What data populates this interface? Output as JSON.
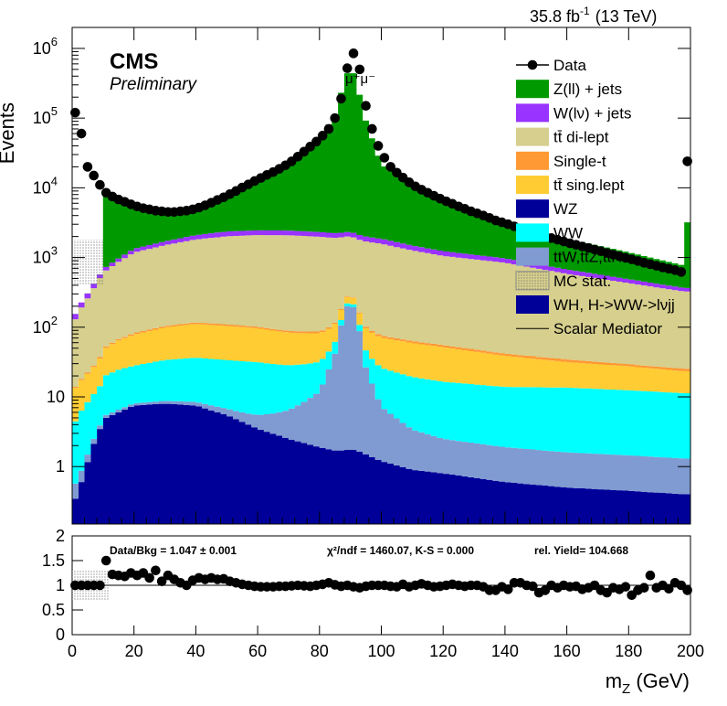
{
  "header": {
    "luminosity": "35.8 fb",
    "lumi_exp": "-1",
    "energy": "(13 TeV)",
    "cms": "CMS",
    "preliminary": "Preliminary",
    "peak_label": "μ⁺μ⁻"
  },
  "ratio_panel": {
    "data_bkg": "Data/Bkg = 1.047  ± 0.001",
    "chi2": "χ²/ndf = 1460.07,   K-S = 0.000",
    "yield": "rel. Yield= 104.668"
  },
  "legend": [
    {
      "label": "Data",
      "kind": "marker",
      "color": "#000000"
    },
    {
      "label": "Z(ll) + jets",
      "kind": "box",
      "color": "#009900"
    },
    {
      "label": "W(lν) + jets",
      "kind": "box",
      "color": "#9933ff"
    },
    {
      "label": "tt̄ di-lept",
      "kind": "box",
      "color": "#d6cf8d"
    },
    {
      "label": "Single-t",
      "kind": "box",
      "color": "#ff9933"
    },
    {
      "label": "tt̄ sing.lept",
      "kind": "box",
      "color": "#ffcc33"
    },
    {
      "label": "WZ",
      "kind": "box",
      "color": "#000099"
    },
    {
      "label": "WW",
      "kind": "box",
      "color": "#00ffff"
    },
    {
      "label": "ttW,ttZ,ttH",
      "kind": "box",
      "color": "#7f9bd1"
    },
    {
      "label": "MC stat.",
      "kind": "hatch",
      "color": "#777777"
    },
    {
      "label": "WH, H->WW->lνjj",
      "kind": "box",
      "color": "#000099"
    },
    {
      "label": "Scalar Mediator",
      "kind": "line",
      "color": "#000000"
    }
  ],
  "chart_data": {
    "type": "area",
    "title": "",
    "xlabel": "m_Z (GeV)",
    "ylabel": "Events",
    "xlim": [
      0,
      200
    ],
    "ylim": [
      0.15,
      2000000
    ],
    "ylog": true,
    "x_ticks": [
      0,
      20,
      40,
      60,
      80,
      100,
      120,
      140,
      160,
      180,
      200
    ],
    "y_ticks": [
      {
        "v": 1,
        "label": "1"
      },
      {
        "v": 10,
        "label": "10"
      },
      {
        "v": 100,
        "label": "10",
        "exp": "2"
      },
      {
        "v": 1000,
        "label": "10",
        "exp": "3"
      },
      {
        "v": 10000,
        "label": "10",
        "exp": "4"
      },
      {
        "v": 100000,
        "label": "10",
        "exp": "5"
      },
      {
        "v": 1000000,
        "label": "10",
        "exp": "6"
      }
    ],
    "stack_order": [
      "WZ",
      "ttV",
      "WW",
      "tt_sl",
      "single_t",
      "tt_dl",
      "W_jets",
      "Z_jets"
    ],
    "stack_colors": {
      "WZ": "#000099",
      "ttV": "#7f9bd1",
      "WW": "#00ffff",
      "tt_sl": "#ffcc33",
      "single_t": "#ff9933",
      "tt_dl": "#d6cf8d",
      "W_jets": "#9933ff",
      "Z_jets": "#009900"
    },
    "x_anchors": [
      0,
      2,
      4,
      6,
      8,
      10,
      11,
      15,
      20,
      30,
      40,
      50,
      60,
      70,
      80,
      85,
      88,
      90,
      92,
      95,
      100,
      110,
      120,
      140,
      160,
      180,
      198,
      200
    ],
    "stack_anchors": {
      "WZ": [
        0.3,
        0.4,
        0.9,
        1.5,
        3,
        4,
        5,
        6,
        7.5,
        8,
        7.5,
        5.5,
        3.5,
        2.5,
        1.9,
        1.7,
        1.7,
        1.8,
        1.7,
        1.5,
        1.2,
        0.9,
        0.8,
        0.6,
        0.5,
        0.45,
        0.4,
        0.4
      ],
      "ttV": [
        0.2,
        0.25,
        0.3,
        0.35,
        0.4,
        0.45,
        0.5,
        0.55,
        0.6,
        0.8,
        1,
        1.3,
        2,
        4,
        10,
        40,
        170,
        230,
        160,
        25,
        6,
        2.5,
        1.7,
        1.3,
        1.1,
        1,
        0.9,
        0.9
      ],
      "WW": [
        3,
        5,
        6,
        8,
        9,
        12,
        15,
        18,
        20,
        25,
        28,
        27,
        26,
        22,
        20,
        20,
        20,
        20,
        20,
        20,
        19,
        16,
        14,
        12,
        12,
        11,
        10,
        10
      ],
      "tt_sl": [
        8,
        10,
        12,
        14,
        18,
        25,
        30,
        40,
        50,
        65,
        75,
        70,
        65,
        55,
        50,
        50,
        50,
        50,
        50,
        50,
        45,
        40,
        35,
        25,
        18,
        15,
        12,
        12
      ],
      "single_t": [
        0.5,
        0.6,
        0.8,
        1,
        1.5,
        2,
        2.5,
        3,
        4,
        5,
        6,
        6,
        5,
        5,
        5,
        5,
        5,
        5,
        5,
        5,
        5,
        4,
        4,
        3,
        3,
        2,
        2,
        2
      ],
      "tt_dl": [
        90,
        150,
        200,
        280,
        400,
        550,
        600,
        800,
        1100,
        1400,
        1700,
        1900,
        2000,
        2000,
        1900,
        1800,
        1750,
        1700,
        1650,
        1600,
        1500,
        1200,
        1000,
        800,
        550,
        400,
        300,
        300
      ],
      "W_jets": [
        20,
        30,
        40,
        50,
        60,
        70,
        80,
        100,
        150,
        200,
        280,
        350,
        350,
        350,
        330,
        320,
        320,
        320,
        310,
        300,
        280,
        220,
        180,
        130,
        90,
        60,
        40,
        40
      ],
      "Z_jets": [
        0.5,
        0.8,
        1,
        1.5,
        2,
        3,
        7000,
        5500,
        4000,
        3000,
        3500,
        5500,
        10000,
        18000,
        48000,
        110000,
        330000,
        580000,
        330000,
        90000,
        20000,
        9000,
        5000,
        2200,
        1200,
        700,
        400,
        20000
      ]
    },
    "data_points": [
      [
        1,
        120000
      ],
      [
        3,
        60000
      ],
      [
        5,
        20000
      ],
      [
        7,
        15000
      ],
      [
        9,
        11000
      ],
      [
        11,
        8500
      ],
      [
        13,
        7500
      ],
      [
        15,
        6800
      ],
      [
        17,
        6300
      ],
      [
        19,
        5800
      ],
      [
        21,
        5400
      ],
      [
        23,
        5100
      ],
      [
        25,
        4900
      ],
      [
        27,
        4700
      ],
      [
        29,
        4600
      ],
      [
        31,
        4500
      ],
      [
        33,
        4500
      ],
      [
        35,
        4600
      ],
      [
        37,
        4700
      ],
      [
        39,
        4900
      ],
      [
        41,
        5200
      ],
      [
        43,
        5600
      ],
      [
        45,
        6100
      ],
      [
        47,
        6700
      ],
      [
        49,
        7300
      ],
      [
        51,
        8100
      ],
      [
        53,
        9000
      ],
      [
        55,
        10100
      ],
      [
        57,
        11200
      ],
      [
        59,
        12500
      ],
      [
        61,
        13800
      ],
      [
        63,
        15300
      ],
      [
        65,
        16800
      ],
      [
        67,
        18700
      ],
      [
        69,
        21000
      ],
      [
        71,
        24000
      ],
      [
        73,
        28000
      ],
      [
        75,
        33000
      ],
      [
        77,
        39000
      ],
      [
        79,
        46000
      ],
      [
        81,
        56000
      ],
      [
        83,
        70000
      ],
      [
        85,
        100000
      ],
      [
        87,
        190000
      ],
      [
        89,
        520000
      ],
      [
        91,
        850000
      ],
      [
        93,
        500000
      ],
      [
        95,
        150000
      ],
      [
        97,
        70000
      ],
      [
        99,
        40000
      ],
      [
        101,
        27000
      ],
      [
        103,
        20000
      ],
      [
        105,
        16500
      ],
      [
        107,
        14000
      ],
      [
        109,
        12000
      ],
      [
        111,
        10500
      ],
      [
        113,
        9400
      ],
      [
        115,
        8500
      ],
      [
        117,
        7700
      ],
      [
        119,
        7000
      ],
      [
        121,
        6400
      ],
      [
        123,
        5900
      ],
      [
        125,
        5400
      ],
      [
        127,
        5000
      ],
      [
        129,
        4600
      ],
      [
        131,
        4300
      ],
      [
        133,
        4000
      ],
      [
        135,
        3700
      ],
      [
        137,
        3400
      ],
      [
        139,
        3200
      ],
      [
        141,
        3000
      ],
      [
        143,
        2800
      ],
      [
        145,
        2600
      ],
      [
        147,
        2450
      ],
      [
        149,
        2300
      ],
      [
        151,
        2150
      ],
      [
        153,
        2000
      ],
      [
        155,
        1900
      ],
      [
        157,
        1800
      ],
      [
        159,
        1700
      ],
      [
        161,
        1600
      ],
      [
        163,
        1520
      ],
      [
        165,
        1440
      ],
      [
        167,
        1370
      ],
      [
        169,
        1300
      ],
      [
        171,
        1230
      ],
      [
        173,
        1160
      ],
      [
        175,
        1100
      ],
      [
        177,
        1040
      ],
      [
        179,
        990
      ],
      [
        181,
        940
      ],
      [
        183,
        890
      ],
      [
        185,
        840
      ],
      [
        187,
        800
      ],
      [
        189,
        760
      ],
      [
        191,
        720
      ],
      [
        193,
        690
      ],
      [
        195,
        660
      ],
      [
        197,
        620
      ],
      [
        199,
        24000
      ]
    ],
    "ratio": {
      "ylabel": "",
      "ylim": [
        0,
        2
      ],
      "y_ticks": [
        0,
        0.5,
        1,
        1.5,
        2
      ],
      "points": [
        [
          1,
          1.0
        ],
        [
          3,
          1.0
        ],
        [
          5,
          1.0
        ],
        [
          7,
          1.0
        ],
        [
          9,
          1.0
        ],
        [
          11,
          1.5
        ],
        [
          13,
          1.22
        ],
        [
          15,
          1.2
        ],
        [
          17,
          1.18
        ],
        [
          19,
          1.25
        ],
        [
          21,
          1.2
        ],
        [
          23,
          1.25
        ],
        [
          25,
          1.15
        ],
        [
          27,
          1.3
        ],
        [
          29,
          1.08
        ],
        [
          31,
          1.2
        ],
        [
          33,
          1.12
        ],
        [
          35,
          1.05
        ],
        [
          37,
          1.0
        ],
        [
          39,
          1.1
        ],
        [
          41,
          1.15
        ],
        [
          43,
          1.12
        ],
        [
          45,
          1.15
        ],
        [
          47,
          1.12
        ],
        [
          49,
          1.13
        ],
        [
          51,
          1.08
        ],
        [
          53,
          1.05
        ],
        [
          55,
          1.02
        ],
        [
          57,
          1.0
        ],
        [
          59,
          0.98
        ],
        [
          61,
          0.97
        ],
        [
          63,
          0.97
        ],
        [
          65,
          0.97
        ],
        [
          67,
          0.98
        ],
        [
          69,
          0.98
        ],
        [
          71,
          0.99
        ],
        [
          73,
          1.0
        ],
        [
          75,
          0.99
        ],
        [
          77,
          0.98
        ],
        [
          79,
          1.0
        ],
        [
          81,
          1.02
        ],
        [
          83,
          1.05
        ],
        [
          85,
          1.01
        ],
        [
          87,
          0.98
        ],
        [
          89,
          1.0
        ],
        [
          91,
          0.97
        ],
        [
          93,
          0.95
        ],
        [
          95,
          0.98
        ],
        [
          97,
          1.0
        ],
        [
          99,
          1.0
        ],
        [
          101,
          1.0
        ],
        [
          103,
          0.98
        ],
        [
          105,
          0.97
        ],
        [
          107,
          1.02
        ],
        [
          109,
          0.97
        ],
        [
          111,
          1.0
        ],
        [
          113,
          1.03
        ],
        [
          115,
          1.0
        ],
        [
          117,
          0.97
        ],
        [
          119,
          0.98
        ],
        [
          121,
          1.0
        ],
        [
          123,
          1.02
        ],
        [
          125,
          1.0
        ],
        [
          127,
          0.98
        ],
        [
          129,
          1.0
        ],
        [
          131,
          1.0
        ],
        [
          133,
          0.97
        ],
        [
          135,
          0.9
        ],
        [
          137,
          0.9
        ],
        [
          139,
          0.97
        ],
        [
          141,
          0.92
        ],
        [
          143,
          1.05
        ],
        [
          145,
          1.05
        ],
        [
          147,
          1.0
        ],
        [
          149,
          0.98
        ],
        [
          151,
          0.85
        ],
        [
          153,
          0.9
        ],
        [
          155,
          1.0
        ],
        [
          157,
          0.95
        ],
        [
          159,
          1.0
        ],
        [
          161,
          0.97
        ],
        [
          163,
          0.98
        ],
        [
          165,
          0.92
        ],
        [
          167,
          0.95
        ],
        [
          169,
          1.0
        ],
        [
          171,
          0.9
        ],
        [
          173,
          0.85
        ],
        [
          175,
          0.95
        ],
        [
          177,
          0.92
        ],
        [
          179,
          0.97
        ],
        [
          181,
          0.8
        ],
        [
          183,
          0.9
        ],
        [
          185,
          0.95
        ],
        [
          187,
          1.2
        ],
        [
          189,
          0.95
        ],
        [
          191,
          1.0
        ],
        [
          193,
          0.93
        ],
        [
          195,
          1.05
        ],
        [
          197,
          1.0
        ],
        [
          199,
          0.9
        ]
      ]
    }
  }
}
